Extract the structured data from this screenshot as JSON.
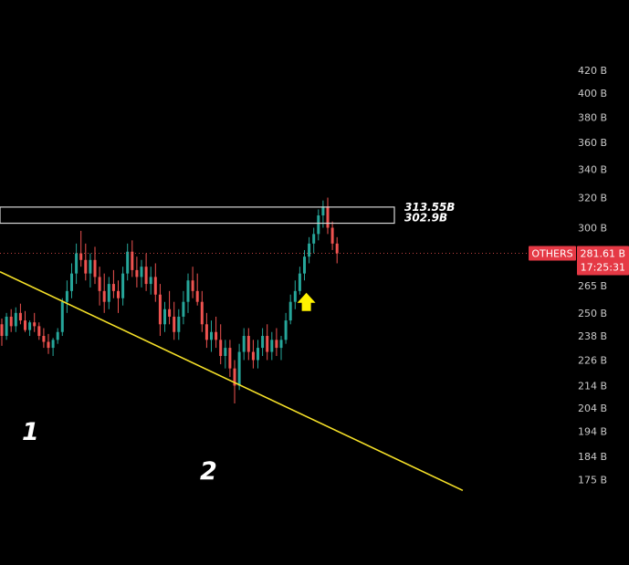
{
  "chart_data": {
    "type": "candlestick",
    "symbol": "OTHERS",
    "last_price": "281.61 B",
    "countdown": "17:25:31",
    "y_axis": {
      "scale": "log",
      "range": [
        171,
        424
      ],
      "ticks": [
        "420 B",
        "400 B",
        "380 B",
        "360 B",
        "340 B",
        "320 B",
        "300 B",
        "265 B",
        "250 B",
        "238 B",
        "226 B",
        "214 B",
        "204 B",
        "194 B",
        "184 B",
        "175 B"
      ],
      "tick_values": [
        420,
        400,
        380,
        360,
        340,
        320,
        300,
        265,
        250,
        238,
        226,
        214,
        204,
        194,
        184,
        175
      ]
    },
    "colors": {
      "up": "#26a69a",
      "down": "#ef5350",
      "trendline": "#f5e028",
      "zone": "#d7d7d7",
      "badge": "#e53945",
      "arrow": "#fff200",
      "price_line": "#ef5350",
      "axis_text": "#c9c9c9"
    },
    "resistance_zone": {
      "top": 313.55,
      "bottom": 302.9,
      "top_label": "313.55B",
      "bottom_label": "302.9B"
    },
    "trendline": {
      "p1": {
        "index": 0,
        "value": 273
      },
      "p2": {
        "index": 99,
        "value": 171
      }
    },
    "annotations": [
      {
        "label": "1",
        "type": "pivot"
      },
      {
        "label": "2",
        "type": "pivot"
      },
      {
        "type": "arrow-up",
        "index": 66,
        "value": 256
      }
    ],
    "candles": [
      [
        244,
        247,
        233,
        238
      ],
      [
        238,
        250,
        236,
        248
      ],
      [
        248,
        252,
        240,
        243
      ],
      [
        243,
        253,
        240,
        250
      ],
      [
        250,
        255,
        244,
        246
      ],
      [
        246,
        251,
        240,
        241
      ],
      [
        241,
        246,
        238,
        245
      ],
      [
        245,
        250,
        240,
        243
      ],
      [
        243,
        245,
        236,
        238
      ],
      [
        238,
        242,
        232,
        235
      ],
      [
        235,
        239,
        229,
        232
      ],
      [
        232,
        237,
        228,
        236
      ],
      [
        236,
        242,
        234,
        240
      ],
      [
        240,
        258,
        238,
        256
      ],
      [
        256,
        268,
        250,
        262
      ],
      [
        262,
        278,
        258,
        272
      ],
      [
        272,
        290,
        266,
        284
      ],
      [
        284,
        298,
        276,
        280
      ],
      [
        280,
        290,
        268,
        272
      ],
      [
        272,
        284,
        264,
        280
      ],
      [
        280,
        288,
        266,
        270
      ],
      [
        270,
        276,
        254,
        262
      ],
      [
        262,
        272,
        250,
        256
      ],
      [
        256,
        270,
        252,
        266
      ],
      [
        266,
        274,
        258,
        262
      ],
      [
        262,
        268,
        250,
        258
      ],
      [
        258,
        276,
        254,
        272
      ],
      [
        272,
        290,
        268,
        285
      ],
      [
        285,
        292,
        270,
        274
      ],
      [
        274,
        282,
        264,
        270
      ],
      [
        270,
        280,
        264,
        276
      ],
      [
        276,
        284,
        262,
        266
      ],
      [
        266,
        276,
        260,
        270
      ],
      [
        270,
        278,
        256,
        260
      ],
      [
        260,
        266,
        238,
        244
      ],
      [
        244,
        256,
        240,
        252
      ],
      [
        252,
        262,
        244,
        248
      ],
      [
        248,
        256,
        236,
        240
      ],
      [
        240,
        252,
        236,
        248
      ],
      [
        248,
        262,
        244,
        256
      ],
      [
        256,
        272,
        250,
        268
      ],
      [
        268,
        276,
        258,
        262
      ],
      [
        262,
        272,
        254,
        256
      ],
      [
        256,
        262,
        240,
        244
      ],
      [
        244,
        250,
        232,
        236
      ],
      [
        236,
        246,
        230,
        240
      ],
      [
        240,
        248,
        232,
        236
      ],
      [
        236,
        244,
        224,
        228
      ],
      [
        228,
        236,
        222,
        232
      ],
      [
        232,
        236,
        218,
        222
      ],
      [
        222,
        226,
        206,
        214
      ],
      [
        214,
        234,
        212,
        230
      ],
      [
        230,
        242,
        226,
        238
      ],
      [
        238,
        242,
        226,
        230
      ],
      [
        230,
        236,
        222,
        226
      ],
      [
        226,
        236,
        222,
        232
      ],
      [
        232,
        242,
        228,
        238
      ],
      [
        238,
        244,
        226,
        230
      ],
      [
        230,
        240,
        226,
        236
      ],
      [
        236,
        242,
        228,
        232
      ],
      [
        232,
        238,
        226,
        236
      ],
      [
        236,
        250,
        234,
        246
      ],
      [
        246,
        260,
        244,
        256
      ],
      [
        256,
        268,
        252,
        262
      ],
      [
        262,
        276,
        260,
        272
      ],
      [
        272,
        286,
        268,
        282
      ],
      [
        282,
        294,
        278,
        290
      ],
      [
        290,
        300,
        284,
        296
      ],
      [
        296,
        312,
        292,
        308
      ],
      [
        308,
        318,
        300,
        314
      ],
      [
        314,
        320,
        296,
        300
      ],
      [
        300,
        304,
        286,
        290
      ],
      [
        290,
        294,
        278,
        284
      ]
    ]
  }
}
